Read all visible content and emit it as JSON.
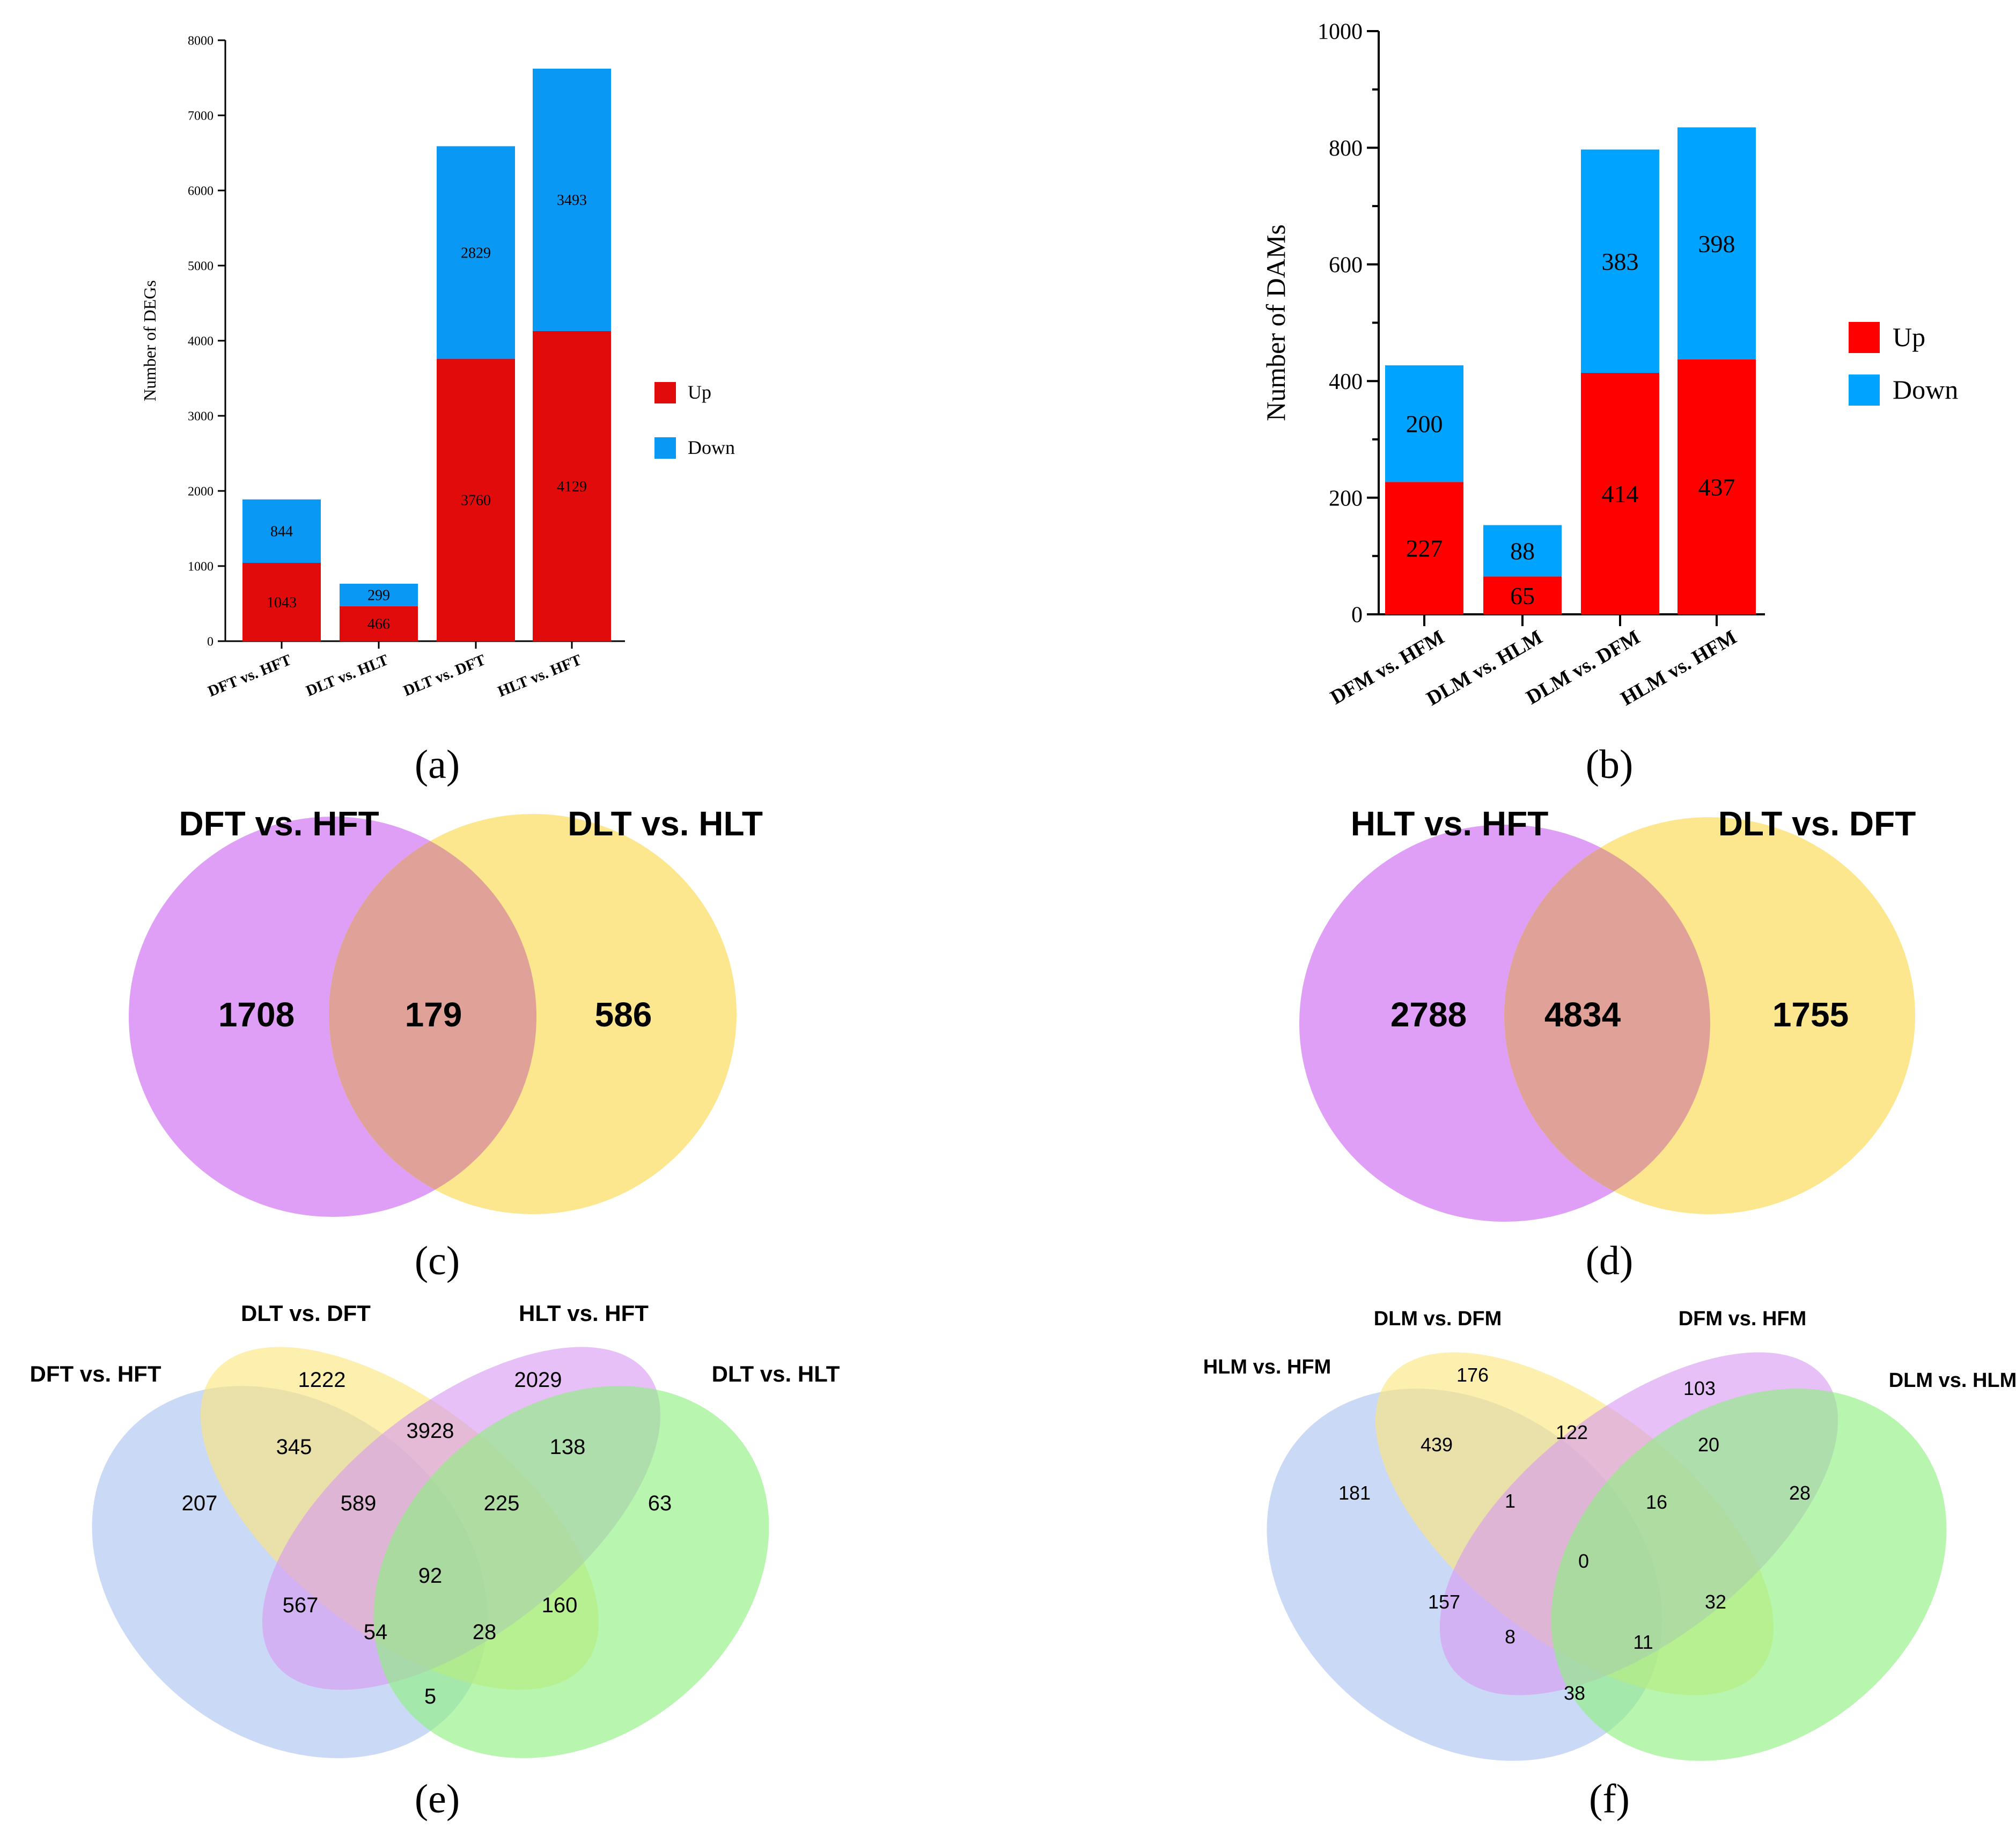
{
  "colors": {
    "up_a": "#e20b0b",
    "down_a": "#0a98f5",
    "up_b": "#ff0000",
    "down_b": "#00a3ff",
    "venn_purple": "#df9ff6",
    "venn_yellow": "#fde78e",
    "venn_overlap": "#e0a298",
    "venn4_blue": "#a9c1ef",
    "venn4_yellow": "#fbe57a",
    "venn4_purple": "#d69af0",
    "venn4_green": "#8cf07f"
  },
  "chart_data": [
    {
      "id": "a",
      "panel_label": "(a)",
      "type": "bar",
      "stacked": true,
      "categories": [
        "DFT vs. HFT",
        "DLT vs. HLT",
        "DLT vs. DFT",
        "HLT vs. HFT"
      ],
      "series": [
        {
          "name": "Up",
          "values": [
            1043,
            466,
            3760,
            4129
          ]
        },
        {
          "name": "Down",
          "values": [
            844,
            299,
            2829,
            3493
          ]
        }
      ],
      "ylabel": "Number of DEGs",
      "ylim": [
        0,
        8000
      ],
      "yticks": [
        0,
        1000,
        2000,
        3000,
        4000,
        5000,
        6000,
        7000,
        8000
      ],
      "legend_position": "right",
      "grid": false
    },
    {
      "id": "b",
      "panel_label": "(b)",
      "type": "bar",
      "stacked": true,
      "categories": [
        "DFM vs. HFM",
        "DLM vs. HLM",
        "DLM vs. DFM",
        "HLM vs. HFM"
      ],
      "series": [
        {
          "name": "Up",
          "values": [
            227,
            65,
            414,
            437
          ]
        },
        {
          "name": "Down",
          "values": [
            200,
            88,
            383,
            398
          ]
        }
      ],
      "ylabel": "Number of DAMs",
      "ylim": [
        0,
        1000
      ],
      "yticks": [
        0,
        200,
        400,
        600,
        800,
        1000
      ],
      "legend_position": "right",
      "grid": false
    },
    {
      "id": "c",
      "panel_label": "(c)",
      "type": "venn2",
      "sets": [
        "DFT vs. HFT",
        "DLT vs. HLT"
      ],
      "regions": {
        "only_1": 1708,
        "both": 179,
        "only_2": 586
      }
    },
    {
      "id": "d",
      "panel_label": "(d)",
      "type": "venn2",
      "sets": [
        "HLT vs. HFT",
        "DLT vs. DFT"
      ],
      "regions": {
        "only_1": 2788,
        "both": 4834,
        "only_2": 1755
      }
    },
    {
      "id": "e",
      "panel_label": "(e)",
      "type": "venn4",
      "sets": [
        "DFT vs. HFT",
        "DLT vs. DFT",
        "HLT vs. HFT",
        "DLT vs. HLT"
      ],
      "regions": {
        "A": 207,
        "B": 1222,
        "C": 2029,
        "D": 63,
        "AB": 345,
        "BC": 3928,
        "CD": 138,
        "AC": 567,
        "BD": 160,
        "AD": 5,
        "ABC": 589,
        "BCD": 225,
        "ACD": 54,
        "ABD": 28,
        "ABCD": 92
      }
    },
    {
      "id": "f",
      "panel_label": "(f)",
      "type": "venn4",
      "sets": [
        "HLM vs. HFM",
        "DLM vs. DFM",
        "DFM vs. HFM",
        "DLM vs. HLM"
      ],
      "regions": {
        "A": 181,
        "B": 176,
        "C": 103,
        "D": 28,
        "AB": 439,
        "BC": 122,
        "CD": 20,
        "AC": 157,
        "BD": 32,
        "AD": 38,
        "ABC": 1,
        "BCD": 16,
        "ACD": 8,
        "ABD": 11,
        "ABCD": 0
      }
    }
  ]
}
